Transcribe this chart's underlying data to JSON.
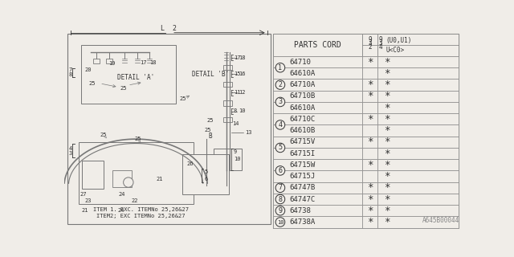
{
  "diagram_code": "A645B00044",
  "parts_header": "PARTS CORD",
  "col_header_left_lines": [
    "9",
    "3",
    "2"
  ],
  "col_header_left_sub": "(U0,U1)",
  "col_header_right_lines": [
    "9",
    "3",
    "4"
  ],
  "col_header_right_sub": "U<C0>",
  "parts": [
    {
      "num": 1,
      "code": "64710",
      "col1": true,
      "col2": true
    },
    {
      "num": null,
      "code": "64610A",
      "col1": false,
      "col2": true
    },
    {
      "num": 2,
      "code": "64710A",
      "col1": true,
      "col2": true
    },
    {
      "num": 3,
      "code": "64710B",
      "col1": true,
      "col2": true
    },
    {
      "num": null,
      "code": "64610A",
      "col1": false,
      "col2": true
    },
    {
      "num": 4,
      "code": "64710C",
      "col1": true,
      "col2": true
    },
    {
      "num": null,
      "code": "64610B",
      "col1": false,
      "col2": true
    },
    {
      "num": 5,
      "code": "64715V",
      "col1": true,
      "col2": true
    },
    {
      "num": null,
      "code": "64715I",
      "col1": false,
      "col2": true
    },
    {
      "num": 6,
      "code": "64715W",
      "col1": true,
      "col2": true
    },
    {
      "num": null,
      "code": "64715J",
      "col1": false,
      "col2": true
    },
    {
      "num": 7,
      "code": "64747B",
      "col1": true,
      "col2": true
    },
    {
      "num": 8,
      "code": "64747C",
      "col1": true,
      "col2": true
    },
    {
      "num": 9,
      "code": "64738",
      "col1": true,
      "col2": true
    },
    {
      "num": 10,
      "code": "64738A",
      "col1": true,
      "col2": true
    }
  ],
  "note1": "ITEM 1. EXC. ITEMNo 25,26&27",
  "note2": "ITEM2; EXC ITEMNo 25,26&27",
  "bg_color": "#f0ede8",
  "line_color": "#555555",
  "text_color": "#333333",
  "table_line_color": "#888888",
  "diag_line_color": "#777777"
}
